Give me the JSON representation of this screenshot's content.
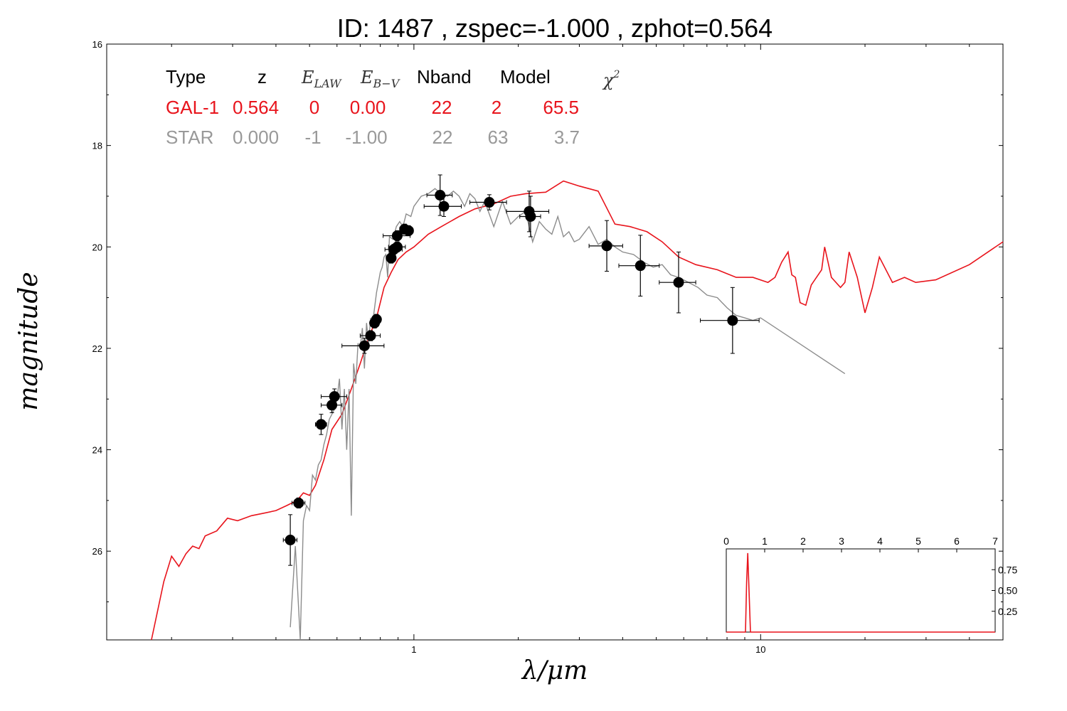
{
  "chart_data": {
    "type": "line",
    "title": "ID:  1487  , zspec=-1.000 , zphot=0.564",
    "xlabel": "λ/μm",
    "ylabel": "magnitude",
    "xscale": "log",
    "yscale": "linear-inverted",
    "xlim": [
      0.13,
      50
    ],
    "ylim": [
      27.75,
      16
    ],
    "xticks": [
      "1",
      "10"
    ],
    "yticks": [
      "16",
      "18",
      "20",
      "22",
      "24",
      "26"
    ],
    "grid": false,
    "table": {
      "headers": [
        "Type",
        "z",
        "E_LAW",
        "E_B−V",
        "Nband",
        "Model",
        "χ²"
      ],
      "rows": [
        {
          "type": "GAL-1",
          "z": "0.564",
          "elaw": "0",
          "ebv": "0.00",
          "nband": "22",
          "model": "2",
          "chi2": "65.5",
          "color": "#e8141c"
        },
        {
          "type": "STAR",
          "z": "0.000",
          "elaw": "-1",
          "ebv": "-1.00",
          "nband": "22",
          "model": "63",
          "chi2": "3.7",
          "color": "#999999"
        }
      ]
    },
    "series": [
      {
        "name": "GAL-1",
        "color": "#e8141c",
        "x": [
          0.175,
          0.19,
          0.2,
          0.21,
          0.22,
          0.23,
          0.24,
          0.25,
          0.27,
          0.29,
          0.31,
          0.34,
          0.37,
          0.4,
          0.43,
          0.46,
          0.48,
          0.5,
          0.52,
          0.55,
          0.58,
          0.62,
          0.66,
          0.7,
          0.74,
          0.78,
          0.82,
          0.86,
          0.9,
          0.95,
          1.0,
          1.1,
          1.2,
          1.35,
          1.5,
          1.7,
          1.9,
          2.1,
          2.4,
          2.7,
          3.0,
          3.4,
          3.8,
          4.2,
          4.7,
          5.2,
          5.8,
          6.5,
          7.5,
          8.5,
          9.5,
          10.5,
          11.0,
          11.5,
          12.0,
          12.3,
          12.6,
          13.0,
          13.5,
          14.0,
          15.0,
          15.3,
          16.0,
          17.0,
          17.5,
          18.0,
          19.0,
          20.0,
          21.0,
          22.0,
          24.0,
          26.0,
          28.0,
          32.0,
          40.0,
          50.0
        ],
        "y": [
          27.9,
          26.6,
          26.1,
          26.3,
          26.05,
          25.9,
          25.95,
          25.7,
          25.6,
          25.35,
          25.4,
          25.3,
          25.25,
          25.2,
          25.1,
          25.0,
          24.85,
          24.9,
          24.7,
          24.2,
          23.6,
          23.3,
          22.8,
          22.3,
          21.8,
          21.4,
          20.8,
          20.5,
          20.25,
          20.1,
          20.0,
          19.75,
          19.6,
          19.4,
          19.25,
          19.15,
          19.0,
          18.95,
          18.92,
          18.7,
          18.8,
          18.9,
          19.55,
          19.6,
          19.7,
          19.9,
          20.2,
          20.35,
          20.45,
          20.6,
          20.6,
          20.7,
          20.6,
          20.3,
          20.1,
          20.55,
          20.6,
          21.1,
          21.15,
          20.75,
          20.45,
          20.0,
          20.6,
          20.8,
          20.7,
          20.1,
          20.6,
          21.3,
          20.8,
          20.2,
          20.7,
          20.6,
          20.7,
          20.65,
          20.35,
          19.9
        ]
      },
      {
        "name": "STAR",
        "color": "#8c8c8c",
        "x": [
          0.44,
          0.455,
          0.47,
          0.48,
          0.49,
          0.5,
          0.51,
          0.52,
          0.53,
          0.54,
          0.55,
          0.56,
          0.57,
          0.58,
          0.59,
          0.6,
          0.61,
          0.62,
          0.63,
          0.64,
          0.65,
          0.66,
          0.67,
          0.68,
          0.69,
          0.7,
          0.71,
          0.72,
          0.73,
          0.74,
          0.75,
          0.76,
          0.77,
          0.78,
          0.79,
          0.8,
          0.81,
          0.82,
          0.83,
          0.84,
          0.85,
          0.87,
          0.89,
          0.91,
          0.93,
          0.95,
          0.98,
          1.0,
          1.05,
          1.1,
          1.15,
          1.2,
          1.25,
          1.3,
          1.35,
          1.4,
          1.45,
          1.5,
          1.55,
          1.6,
          1.7,
          1.8,
          1.9,
          2.0,
          2.1,
          2.2,
          2.3,
          2.4,
          2.5,
          2.6,
          2.7,
          2.8,
          2.9,
          3.0,
          3.2,
          3.4,
          3.6,
          3.8,
          4.0,
          4.3,
          4.6,
          4.9,
          5.2,
          5.5,
          5.8,
          6.2,
          6.6,
          7.0,
          7.5,
          8.0,
          8.5,
          9.0,
          9.5,
          10.0,
          17.5
        ],
        "y": [
          27.5,
          25.9,
          27.8,
          25.4,
          25.1,
          25.2,
          24.5,
          24.6,
          24.3,
          24.2,
          23.9,
          23.7,
          23.4,
          23.3,
          23.2,
          23.0,
          22.6,
          23.6,
          22.8,
          24.0,
          22.8,
          25.3,
          22.3,
          22.7,
          21.9,
          22.0,
          21.6,
          22.4,
          21.5,
          21.9,
          21.4,
          21.5,
          21.2,
          20.9,
          20.7,
          20.5,
          20.4,
          20.2,
          20.15,
          20.6,
          19.8,
          19.85,
          19.6,
          19.5,
          19.6,
          19.35,
          19.4,
          19.2,
          19.0,
          18.95,
          18.85,
          18.95,
          19.0,
          18.9,
          19.0,
          19.2,
          18.95,
          19.05,
          19.3,
          19.1,
          19.6,
          19.1,
          19.55,
          19.4,
          19.3,
          19.9,
          19.5,
          19.65,
          19.75,
          19.4,
          19.8,
          19.7,
          19.9,
          19.85,
          19.6,
          19.95,
          19.85,
          20.0,
          20.1,
          20.15,
          20.3,
          20.4,
          20.35,
          20.55,
          20.6,
          20.7,
          20.8,
          20.95,
          21.0,
          21.2,
          21.35,
          21.4,
          21.45,
          21.4,
          22.5
        ]
      }
    ],
    "photometry": {
      "name": "observed",
      "color": "#000000",
      "points": [
        {
          "x": 0.44,
          "y": 25.78,
          "xerr": 0.02,
          "yerr": 0.5
        },
        {
          "x": 0.465,
          "y": 25.05,
          "xerr": 0.02,
          "yerr": 0.1
        },
        {
          "x": 0.54,
          "y": 23.5,
          "xerr": 0.02,
          "yerr": 0.2
        },
        {
          "x": 0.59,
          "y": 22.95,
          "xerr": 0.05,
          "yerr": 0.15
        },
        {
          "x": 0.58,
          "y": 23.12,
          "xerr": 0.04,
          "yerr": 0.15
        },
        {
          "x": 0.72,
          "y": 21.95,
          "xerr": 0.1,
          "yerr": 0.15
        },
        {
          "x": 0.75,
          "y": 21.75,
          "xerr": 0.05,
          "yerr": 0.1
        },
        {
          "x": 0.77,
          "y": 21.5,
          "xerr": 0.02,
          "yerr": 0.1
        },
        {
          "x": 0.78,
          "y": 21.43,
          "xerr": 0.02,
          "yerr": 0.1
        },
        {
          "x": 0.86,
          "y": 20.22,
          "xerr": 0.02,
          "yerr": 0.1
        },
        {
          "x": 0.875,
          "y": 20.05,
          "xerr": 0.05,
          "yerr": 0.1
        },
        {
          "x": 0.895,
          "y": 20.0,
          "xerr": 0.05,
          "yerr": 0.1
        },
        {
          "x": 0.895,
          "y": 19.78,
          "xerr": 0.08,
          "yerr": 0.1
        },
        {
          "x": 0.94,
          "y": 19.65,
          "xerr": 0.03,
          "yerr": 0.1
        },
        {
          "x": 0.965,
          "y": 19.68,
          "xerr": 0.03,
          "yerr": 0.1
        },
        {
          "x": 1.19,
          "y": 18.98,
          "xerr": 0.1,
          "yerr": 0.4
        },
        {
          "x": 1.22,
          "y": 19.2,
          "xerr": 0.15,
          "yerr": 0.2
        },
        {
          "x": 1.65,
          "y": 19.12,
          "xerr": 0.2,
          "yerr": 0.15
        },
        {
          "x": 2.15,
          "y": 19.3,
          "xerr": 0.3,
          "yerr": 0.4
        },
        {
          "x": 2.17,
          "y": 19.4,
          "xerr": 0.15,
          "yerr": 0.4
        },
        {
          "x": 3.6,
          "y": 19.98,
          "xerr": 0.4,
          "yerr": 0.5
        },
        {
          "x": 4.5,
          "y": 20.37,
          "xerr": 0.6,
          "yerr": 0.6
        },
        {
          "x": 5.8,
          "y": 20.7,
          "xerr": 0.7,
          "yerr": 0.6
        },
        {
          "x": 8.3,
          "y": 21.45,
          "xerr": 1.6,
          "yerr": 0.65
        }
      ]
    },
    "inset": {
      "type": "line",
      "xlim": [
        0,
        7
      ],
      "ylim": [
        0,
        1.0
      ],
      "xticks": [
        "0",
        "1",
        "2",
        "3",
        "4",
        "5",
        "6",
        "7"
      ],
      "yticks": [
        "0.25",
        "0.50",
        "0.75"
      ],
      "color": "#e8141c",
      "x": [
        0,
        0.5,
        0.53,
        0.56,
        0.6,
        0.63,
        7.0
      ],
      "y": [
        0.0,
        0.0,
        0.6,
        0.95,
        0.4,
        0.0,
        0.0
      ]
    }
  }
}
